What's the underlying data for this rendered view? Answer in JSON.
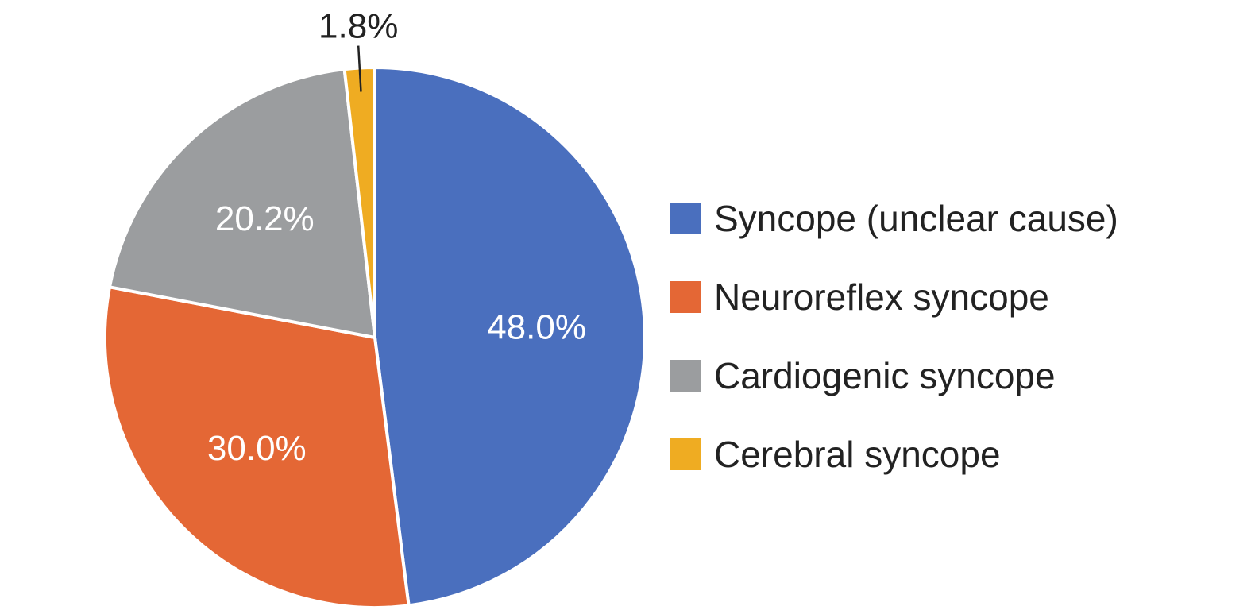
{
  "chart_data": {
    "type": "pie",
    "title": "",
    "start_angle_deg": 0,
    "direction": "clockwise",
    "legend_position": "right",
    "slices": [
      {
        "label": "Syncope (unclear cause)",
        "value": 48.0,
        "display": "48.0%",
        "color": "#4a6fbe",
        "label_placement": "inside"
      },
      {
        "label": "Neuroreflex syncope",
        "value": 30.0,
        "display": "30.0%",
        "color": "#e46735",
        "label_placement": "inside"
      },
      {
        "label": "Cardiogenic syncope",
        "value": 20.2,
        "display": "20.2%",
        "color": "#9b9d9f",
        "label_placement": "inside"
      },
      {
        "label": "Cerebral syncope",
        "value": 1.8,
        "display": "1.8%",
        "color": "#efac22",
        "label_placement": "outside"
      }
    ]
  }
}
